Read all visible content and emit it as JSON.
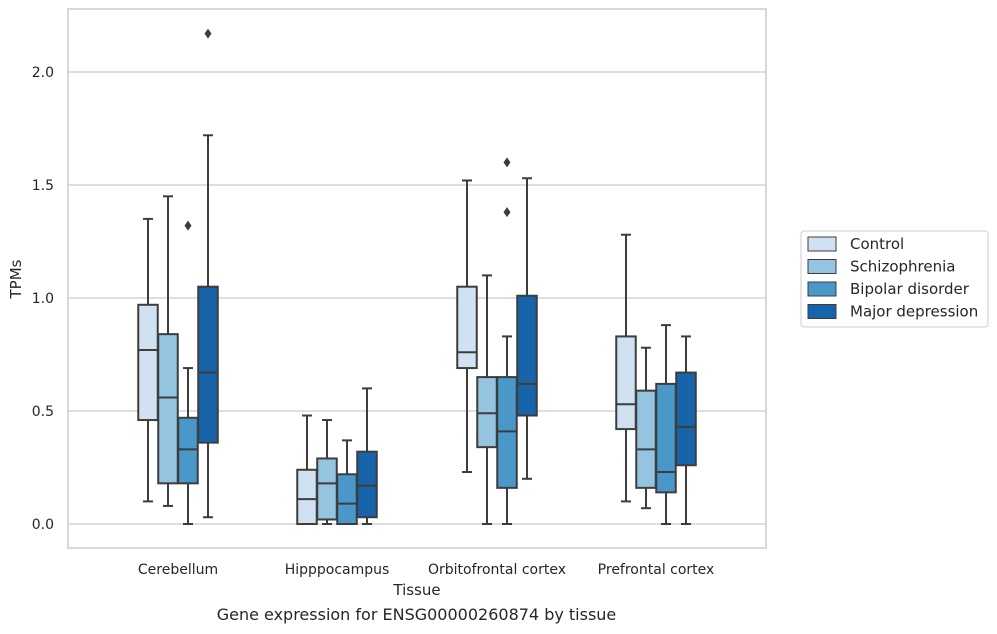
{
  "caption": "Gene expression for ENSG00000260874 by tissue",
  "chart_data": {
    "type": "box",
    "title": "",
    "xlabel": "Tissue",
    "ylabel": "TPMs",
    "ylim": [
      -0.1,
      2.28
    ],
    "yticks": [
      0.0,
      0.5,
      1.0,
      1.5,
      2.0
    ],
    "ytick_labels": [
      "0.0",
      "0.5",
      "1.0",
      "1.5",
      "2.0"
    ],
    "grid": "horizontal",
    "legend_position": "right",
    "categories": [
      "Cerebellum",
      "Hipppocampus",
      "Orbitofrontal cortex",
      "Prefrontal cortex"
    ],
    "series": [
      {
        "name": "Control",
        "color": "#d0e1f2",
        "boxes": [
          {
            "whislo": 0.1,
            "q1": 0.46,
            "med": 0.77,
            "q3": 0.97,
            "whishi": 1.35,
            "fliers": []
          },
          {
            "whislo": 0.0,
            "q1": 0.0,
            "med": 0.11,
            "q3": 0.24,
            "whishi": 0.48,
            "fliers": []
          },
          {
            "whislo": 0.23,
            "q1": 0.69,
            "med": 0.76,
            "q3": 1.05,
            "whishi": 1.52,
            "fliers": []
          },
          {
            "whislo": 0.1,
            "q1": 0.42,
            "med": 0.53,
            "q3": 0.83,
            "whishi": 1.28,
            "fliers": []
          }
        ]
      },
      {
        "name": "Schizophrenia",
        "color": "#94c4df",
        "boxes": [
          {
            "whislo": 0.08,
            "q1": 0.18,
            "med": 0.56,
            "q3": 0.84,
            "whishi": 1.45,
            "fliers": []
          },
          {
            "whislo": 0.0,
            "q1": 0.02,
            "med": 0.18,
            "q3": 0.29,
            "whishi": 0.46,
            "fliers": []
          },
          {
            "whislo": 0.0,
            "q1": 0.34,
            "med": 0.49,
            "q3": 0.65,
            "whishi": 1.1,
            "fliers": []
          },
          {
            "whislo": 0.07,
            "q1": 0.16,
            "med": 0.33,
            "q3": 0.59,
            "whishi": 0.78,
            "fliers": []
          }
        ]
      },
      {
        "name": "Bipolar disorder",
        "color": "#4a98c9",
        "boxes": [
          {
            "whislo": 0.0,
            "q1": 0.18,
            "med": 0.33,
            "q3": 0.47,
            "whishi": 0.69,
            "fliers": [
              1.32
            ]
          },
          {
            "whislo": 0.0,
            "q1": 0.0,
            "med": 0.09,
            "q3": 0.22,
            "whishi": 0.37,
            "fliers": []
          },
          {
            "whislo": 0.0,
            "q1": 0.16,
            "med": 0.41,
            "q3": 0.65,
            "whishi": 0.83,
            "fliers": [
              1.38,
              1.6
            ]
          },
          {
            "whislo": 0.0,
            "q1": 0.14,
            "med": 0.23,
            "q3": 0.62,
            "whishi": 0.88,
            "fliers": []
          }
        ]
      },
      {
        "name": "Major depression",
        "color": "#1764ab",
        "boxes": [
          {
            "whislo": 0.03,
            "q1": 0.36,
            "med": 0.67,
            "q3": 1.05,
            "whishi": 1.72,
            "fliers": [
              2.17
            ]
          },
          {
            "whislo": 0.0,
            "q1": 0.03,
            "med": 0.17,
            "q3": 0.32,
            "whishi": 0.6,
            "fliers": []
          },
          {
            "whislo": 0.2,
            "q1": 0.48,
            "med": 0.62,
            "q3": 1.01,
            "whishi": 1.53,
            "fliers": []
          },
          {
            "whislo": 0.0,
            "q1": 0.26,
            "med": 0.43,
            "q3": 0.67,
            "whishi": 0.83,
            "fliers": []
          }
        ]
      }
    ]
  }
}
